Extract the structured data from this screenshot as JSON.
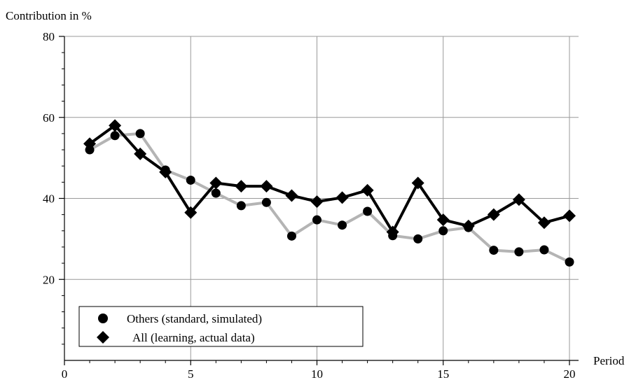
{
  "chart_data": {
    "type": "line",
    "ylabel": "Contribution in %",
    "xlabel": "Period",
    "xlim": [
      0,
      20
    ],
    "ylim": [
      0,
      80
    ],
    "xticks": [
      0,
      5,
      10,
      15,
      20
    ],
    "yticks": [
      20,
      40,
      60,
      80
    ],
    "grid": true,
    "legend": "bottom-left",
    "x": [
      1,
      2,
      3,
      4,
      5,
      6,
      7,
      8,
      9,
      10,
      11,
      12,
      13,
      14,
      15,
      16,
      17,
      18,
      19,
      20
    ],
    "series": [
      {
        "name": "Others (standard, simulated)",
        "marker": "circle",
        "color": "#b4b4b4",
        "marker_color": "#000000",
        "values": [
          52,
          55.5,
          56,
          47,
          44.5,
          41.3,
          38.2,
          39,
          30.7,
          34.7,
          33.4,
          36.8,
          30.8,
          30,
          32,
          32.8,
          27.2,
          26.8,
          27.3,
          24.3
        ]
      },
      {
        "name": "All (learning, actual data)",
        "marker": "diamond",
        "color": "#000000",
        "marker_color": "#000000",
        "values": [
          53.5,
          58,
          51,
          46.5,
          36.5,
          43.8,
          43,
          43,
          40.7,
          39.2,
          40.2,
          42,
          31.7,
          43.8,
          34.7,
          33.2,
          36,
          39.7,
          34,
          35.7
        ]
      }
    ]
  }
}
